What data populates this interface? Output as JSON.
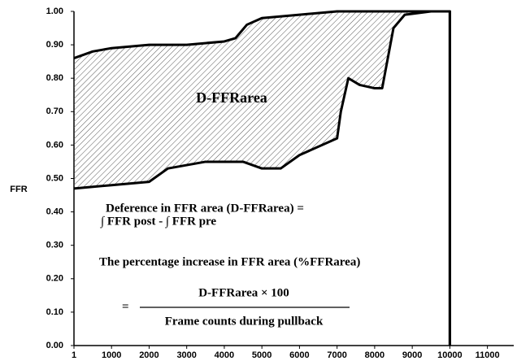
{
  "chart_data": {
    "type": "line",
    "ylabel": "FFR",
    "xlim": [
      1,
      11700
    ],
    "ylim": [
      0,
      1
    ],
    "xticks": [
      1,
      1000,
      2000,
      3000,
      4000,
      5000,
      6000,
      7000,
      8000,
      9000,
      10000,
      11000
    ],
    "yticks": [
      {
        "value": 0,
        "label": "0.00"
      },
      {
        "value": 0.1,
        "label": "0.10"
      },
      {
        "value": 0.2,
        "label": "0.20"
      },
      {
        "value": 0.3,
        "label": "0.30"
      },
      {
        "value": 0.4,
        "label": "0.40"
      },
      {
        "value": 0.5,
        "label": "0.50"
      },
      {
        "value": 0.6,
        "label": "0.60"
      },
      {
        "value": 0.7,
        "label": "0.70"
      },
      {
        "value": 0.8,
        "label": "0.80"
      },
      {
        "value": 0.9,
        "label": "0.90"
      },
      {
        "value": 1,
        "label": "1.00"
      }
    ],
    "series": [
      {
        "color": "#000000",
        "x": [
          1,
          500,
          1000,
          2000,
          3000,
          4000,
          4300,
          4600,
          5000,
          6000,
          7000,
          9000,
          10000,
          10000
        ],
        "values": [
          0.86,
          0.88,
          0.89,
          0.9,
          0.9,
          0.91,
          0.92,
          0.96,
          0.98,
          0.99,
          1.0,
          1.0,
          1.0,
          0
        ]
      },
      {
        "color": "#000000",
        "x": [
          1,
          1000,
          2000,
          2500,
          3500,
          4500,
          5000,
          5500,
          6000,
          7000,
          7100,
          7300,
          7600,
          8000,
          8200,
          8500,
          8800,
          9500,
          10000,
          10000
        ],
        "values": [
          0.47,
          0.48,
          0.49,
          0.53,
          0.55,
          0.55,
          0.53,
          0.53,
          0.57,
          0.62,
          0.7,
          0.8,
          0.78,
          0.77,
          0.77,
          0.95,
          0.99,
          1.0,
          1.0,
          0
        ]
      }
    ],
    "annotations": {
      "area": "D-FFRarea",
      "def1": "Deference in  FFR area (D-FFRarea) =",
      "def2": "∫ FFR post - ∫ FFR pre",
      "pct": "The percentage increase in FFR area (%FFRarea)",
      "eq": "=",
      "num": "D-FFRarea × 100",
      "den": "Frame counts during  pullback"
    }
  }
}
